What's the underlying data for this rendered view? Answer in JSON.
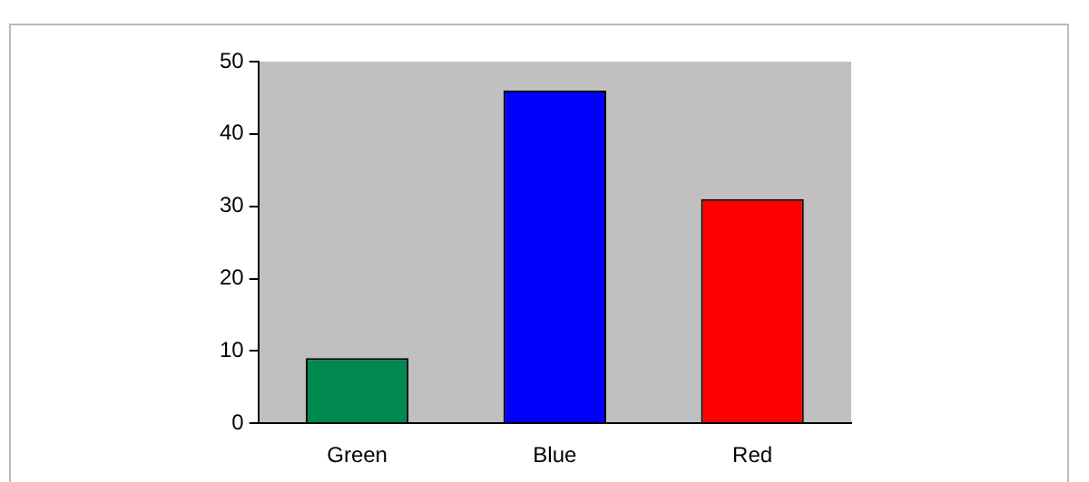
{
  "chart_data": {
    "type": "bar",
    "categories": [
      "Green",
      "Blue",
      "Red"
    ],
    "values": [
      9,
      46,
      31
    ],
    "colors": [
      "#00884f",
      "#0000ff",
      "#ff0000"
    ],
    "ylim": [
      0,
      50
    ],
    "yticks": [
      0,
      10,
      20,
      30,
      40,
      50
    ],
    "legend": false
  }
}
